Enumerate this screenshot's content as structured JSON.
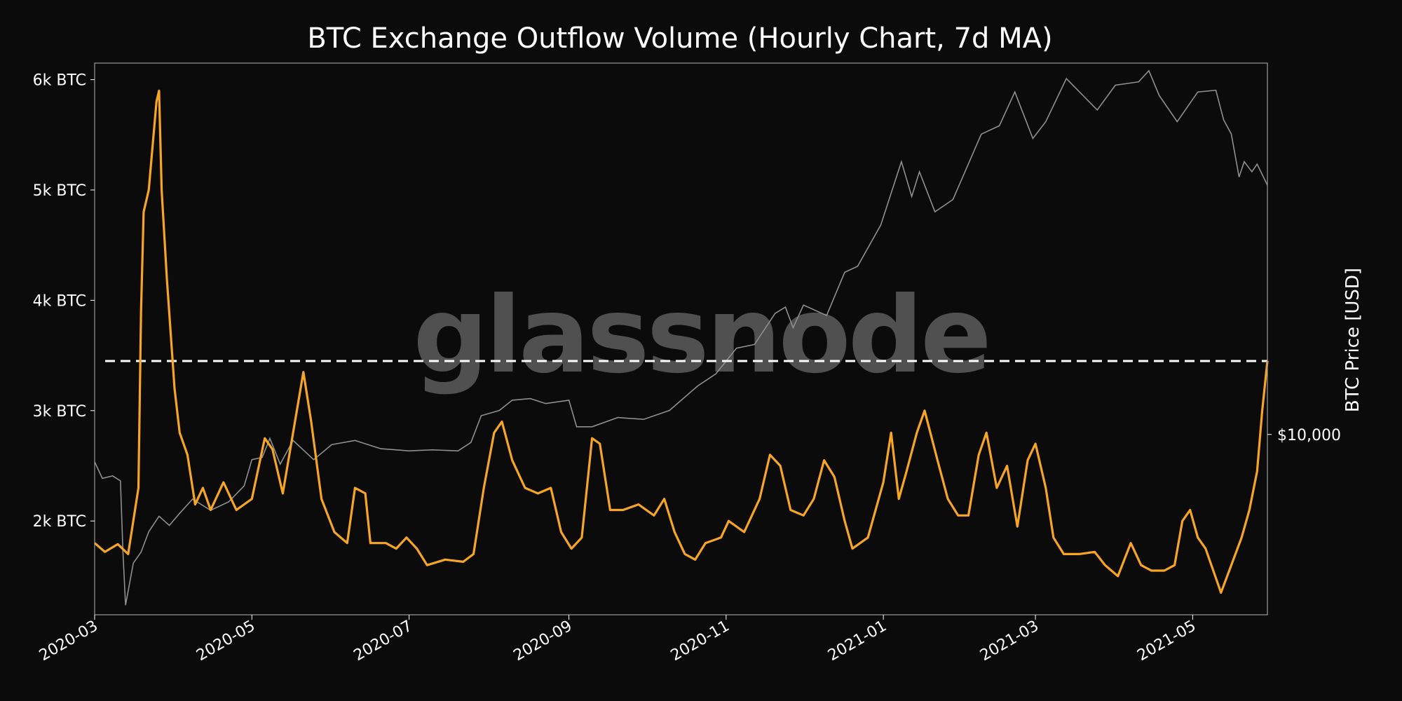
{
  "chart_data": {
    "type": "line",
    "title": "BTC Exchange Outflow Volume (Hourly Chart, 7d MA)",
    "watermark": "glassnode",
    "ylabel_right": "BTC Price [USD]",
    "y_left_ticks": [
      "2k BTC",
      "3k BTC",
      "4k BTC",
      "5k BTC",
      "6k BTC"
    ],
    "y_left_tick_values": [
      2000,
      3000,
      4000,
      5000,
      6000
    ],
    "ylim_left": [
      1150,
      6150
    ],
    "y_right_ticks": [
      "$10,000"
    ],
    "y_right_tick_values": [
      10000
    ],
    "ylim_right_log": [
      4000,
      66000
    ],
    "x_ticks": [
      "2020-03",
      "2020-05",
      "2020-07",
      "2020-09",
      "2020-11",
      "2021-01",
      "2021-03",
      "2021-05"
    ],
    "x_tick_dates": [
      "2020-03-01",
      "2020-05-01",
      "2020-07-01",
      "2020-09-01",
      "2020-11-01",
      "2021-01-01",
      "2021-03-01",
      "2021-05-01"
    ],
    "xlim": [
      "2020-03-01",
      "2021-05-30"
    ],
    "reference_line": {
      "value": 3450,
      "style": "dashed",
      "color": "#ffffff"
    },
    "grid": false,
    "colors": {
      "outflow": "#f7a525",
      "price": "#8f8f8f",
      "background": "#0b0b0b",
      "frame": "#9a9a9a"
    },
    "series": [
      {
        "axis": "left",
        "color": "#f7a525",
        "points": [
          [
            "2020-03-01",
            1800
          ],
          [
            "2020-03-05",
            1720
          ],
          [
            "2020-03-10",
            1790
          ],
          [
            "2020-03-14",
            1700
          ],
          [
            "2020-03-18",
            2300
          ],
          [
            "2020-03-19",
            3900
          ],
          [
            "2020-03-20",
            4800
          ],
          [
            "2020-03-22",
            5000
          ],
          [
            "2020-03-25",
            5800
          ],
          [
            "2020-03-26",
            5900
          ],
          [
            "2020-03-27",
            5000
          ],
          [
            "2020-03-29",
            4200
          ],
          [
            "2020-04-01",
            3200
          ],
          [
            "2020-04-03",
            2800
          ],
          [
            "2020-04-06",
            2600
          ],
          [
            "2020-04-09",
            2150
          ],
          [
            "2020-04-12",
            2300
          ],
          [
            "2020-04-15",
            2100
          ],
          [
            "2020-04-20",
            2350
          ],
          [
            "2020-04-25",
            2100
          ],
          [
            "2020-05-01",
            2200
          ],
          [
            "2020-05-06",
            2750
          ],
          [
            "2020-05-09",
            2650
          ],
          [
            "2020-05-13",
            2250
          ],
          [
            "2020-05-17",
            2800
          ],
          [
            "2020-05-21",
            3350
          ],
          [
            "2020-05-24",
            2900
          ],
          [
            "2020-05-28",
            2200
          ],
          [
            "2020-06-02",
            1900
          ],
          [
            "2020-06-07",
            1800
          ],
          [
            "2020-06-10",
            2300
          ],
          [
            "2020-06-14",
            2250
          ],
          [
            "2020-06-16",
            1800
          ],
          [
            "2020-06-22",
            1800
          ],
          [
            "2020-06-26",
            1750
          ],
          [
            "2020-06-30",
            1850
          ],
          [
            "2020-07-04",
            1750
          ],
          [
            "2020-07-08",
            1600
          ],
          [
            "2020-07-15",
            1650
          ],
          [
            "2020-07-22",
            1630
          ],
          [
            "2020-07-26",
            1700
          ],
          [
            "2020-07-30",
            2300
          ],
          [
            "2020-08-03",
            2800
          ],
          [
            "2020-08-06",
            2900
          ],
          [
            "2020-08-10",
            2550
          ],
          [
            "2020-08-15",
            2300
          ],
          [
            "2020-08-20",
            2250
          ],
          [
            "2020-08-25",
            2300
          ],
          [
            "2020-08-29",
            1900
          ],
          [
            "2020-09-02",
            1750
          ],
          [
            "2020-09-06",
            1850
          ],
          [
            "2020-09-10",
            2750
          ],
          [
            "2020-09-13",
            2700
          ],
          [
            "2020-09-17",
            2100
          ],
          [
            "2020-09-22",
            2100
          ],
          [
            "2020-09-28",
            2150
          ],
          [
            "2020-10-04",
            2050
          ],
          [
            "2020-10-08",
            2200
          ],
          [
            "2020-10-12",
            1900
          ],
          [
            "2020-10-16",
            1700
          ],
          [
            "2020-10-20",
            1650
          ],
          [
            "2020-10-24",
            1800
          ],
          [
            "2020-10-30",
            1850
          ],
          [
            "2020-11-02",
            2000
          ],
          [
            "2020-11-08",
            1900
          ],
          [
            "2020-11-14",
            2200
          ],
          [
            "2020-11-18",
            2600
          ],
          [
            "2020-11-22",
            2500
          ],
          [
            "2020-11-26",
            2100
          ],
          [
            "2020-12-01",
            2050
          ],
          [
            "2020-12-05",
            2200
          ],
          [
            "2020-12-09",
            2550
          ],
          [
            "2020-12-13",
            2400
          ],
          [
            "2020-12-17",
            2000
          ],
          [
            "2020-12-20",
            1750
          ],
          [
            "2020-12-26",
            1850
          ],
          [
            "2021-01-01",
            2350
          ],
          [
            "2021-01-04",
            2800
          ],
          [
            "2021-01-07",
            2200
          ],
          [
            "2021-01-10",
            2450
          ],
          [
            "2021-01-14",
            2800
          ],
          [
            "2021-01-17",
            3000
          ],
          [
            "2021-01-22",
            2550
          ],
          [
            "2021-01-26",
            2200
          ],
          [
            "2021-01-30",
            2050
          ],
          [
            "2021-02-03",
            2050
          ],
          [
            "2021-02-07",
            2600
          ],
          [
            "2021-02-10",
            2800
          ],
          [
            "2021-02-14",
            2300
          ],
          [
            "2021-02-18",
            2500
          ],
          [
            "2021-02-22",
            1950
          ],
          [
            "2021-02-26",
            2550
          ],
          [
            "2021-03-01",
            2700
          ],
          [
            "2021-03-05",
            2300
          ],
          [
            "2021-03-08",
            1850
          ],
          [
            "2021-03-12",
            1700
          ],
          [
            "2021-03-18",
            1700
          ],
          [
            "2021-03-24",
            1720
          ],
          [
            "2021-03-28",
            1600
          ],
          [
            "2021-04-02",
            1500
          ],
          [
            "2021-04-07",
            1800
          ],
          [
            "2021-04-11",
            1600
          ],
          [
            "2021-04-15",
            1550
          ],
          [
            "2021-04-20",
            1550
          ],
          [
            "2021-04-24",
            1600
          ],
          [
            "2021-04-27",
            2000
          ],
          [
            "2021-04-30",
            2100
          ],
          [
            "2021-05-03",
            1850
          ],
          [
            "2021-05-06",
            1750
          ],
          [
            "2021-05-09",
            1550
          ],
          [
            "2021-05-12",
            1350
          ],
          [
            "2021-05-16",
            1600
          ],
          [
            "2021-05-20",
            1850
          ],
          [
            "2021-05-23",
            2100
          ],
          [
            "2021-05-26",
            2450
          ],
          [
            "2021-05-28",
            3000
          ],
          [
            "2021-05-30",
            3450
          ]
        ]
      },
      {
        "axis": "right",
        "color": "#8f8f8f",
        "points": [
          [
            "2020-03-01",
            8700
          ],
          [
            "2020-03-04",
            8000
          ],
          [
            "2020-03-08",
            8100
          ],
          [
            "2020-03-11",
            7900
          ],
          [
            "2020-03-12",
            5500
          ],
          [
            "2020-03-13",
            4200
          ],
          [
            "2020-03-16",
            5200
          ],
          [
            "2020-03-19",
            5500
          ],
          [
            "2020-03-22",
            6100
          ],
          [
            "2020-03-26",
            6600
          ],
          [
            "2020-03-30",
            6300
          ],
          [
            "2020-04-03",
            6700
          ],
          [
            "2020-04-08",
            7200
          ],
          [
            "2020-04-15",
            6800
          ],
          [
            "2020-04-22",
            7100
          ],
          [
            "2020-04-28",
            7700
          ],
          [
            "2020-05-01",
            8800
          ],
          [
            "2020-05-05",
            8900
          ],
          [
            "2020-05-08",
            9800
          ],
          [
            "2020-05-12",
            8600
          ],
          [
            "2020-05-17",
            9700
          ],
          [
            "2020-05-25",
            8800
          ],
          [
            "2020-06-01",
            9500
          ],
          [
            "2020-06-10",
            9700
          ],
          [
            "2020-06-20",
            9300
          ],
          [
            "2020-07-01",
            9200
          ],
          [
            "2020-07-10",
            9250
          ],
          [
            "2020-07-20",
            9200
          ],
          [
            "2020-07-25",
            9600
          ],
          [
            "2020-07-29",
            11000
          ],
          [
            "2020-08-05",
            11300
          ],
          [
            "2020-08-10",
            11900
          ],
          [
            "2020-08-17",
            12000
          ],
          [
            "2020-08-23",
            11700
          ],
          [
            "2020-09-01",
            11900
          ],
          [
            "2020-09-04",
            10400
          ],
          [
            "2020-09-10",
            10400
          ],
          [
            "2020-09-20",
            10900
          ],
          [
            "2020-09-30",
            10800
          ],
          [
            "2020-10-10",
            11300
          ],
          [
            "2020-10-21",
            12800
          ],
          [
            "2020-10-28",
            13600
          ],
          [
            "2020-11-05",
            15500
          ],
          [
            "2020-11-12",
            15800
          ],
          [
            "2020-11-20",
            18500
          ],
          [
            "2020-11-24",
            19100
          ],
          [
            "2020-11-27",
            17200
          ],
          [
            "2020-12-01",
            19300
          ],
          [
            "2020-12-10",
            18300
          ],
          [
            "2020-12-17",
            22800
          ],
          [
            "2020-12-22",
            23500
          ],
          [
            "2020-12-31",
            29000
          ],
          [
            "2021-01-08",
            40000
          ],
          [
            "2021-01-12",
            33500
          ],
          [
            "2021-01-15",
            38000
          ],
          [
            "2021-01-21",
            31000
          ],
          [
            "2021-01-28",
            33000
          ],
          [
            "2021-02-08",
            46000
          ],
          [
            "2021-02-15",
            48000
          ],
          [
            "2021-02-21",
            57000
          ],
          [
            "2021-02-28",
            45000
          ],
          [
            "2021-03-05",
            49000
          ],
          [
            "2021-03-13",
            61000
          ],
          [
            "2021-03-25",
            52000
          ],
          [
            "2021-04-01",
            59000
          ],
          [
            "2021-04-10",
            60000
          ],
          [
            "2021-04-14",
            63500
          ],
          [
            "2021-04-18",
            56000
          ],
          [
            "2021-04-25",
            49000
          ],
          [
            "2021-05-03",
            57000
          ],
          [
            "2021-05-10",
            57500
          ],
          [
            "2021-05-13",
            49500
          ],
          [
            "2021-05-16",
            46000
          ],
          [
            "2021-05-19",
            37000
          ],
          [
            "2021-05-21",
            40000
          ],
          [
            "2021-05-24",
            38000
          ],
          [
            "2021-05-26",
            39500
          ],
          [
            "2021-05-30",
            35500
          ]
        ]
      }
    ]
  }
}
